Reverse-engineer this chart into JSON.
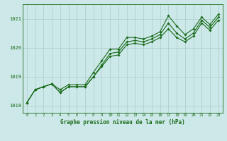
{
  "title": "",
  "xlabel": "Graphe pression niveau de la mer (hPa)",
  "ylabel": "",
  "bg_color": "#cce8e8",
  "grid_color": "#aacccc",
  "line_color": "#1a6b1a",
  "marker_size": 1.8,
  "xlim": [
    -0.5,
    23.5
  ],
  "ylim": [
    1017.75,
    1021.5
  ],
  "yticks": [
    1018,
    1019,
    1020,
    1021
  ],
  "xticks": [
    0,
    1,
    2,
    3,
    4,
    5,
    6,
    7,
    8,
    9,
    10,
    11,
    12,
    13,
    14,
    15,
    16,
    17,
    18,
    19,
    20,
    21,
    22,
    23
  ],
  "series1": [
    1018.1,
    1018.55,
    1018.65,
    1018.75,
    1018.55,
    1018.72,
    1018.72,
    1018.72,
    1019.15,
    1019.55,
    1019.95,
    1019.95,
    1020.35,
    1020.35,
    1020.3,
    1020.4,
    1020.55,
    1021.1,
    1020.75,
    1020.45,
    1020.65,
    1021.05,
    1020.8,
    1021.15
  ],
  "series2": [
    1018.1,
    1018.55,
    1018.65,
    1018.75,
    1018.45,
    1018.65,
    1018.65,
    1018.65,
    1019.0,
    1019.4,
    1019.8,
    1019.85,
    1020.2,
    1020.25,
    1020.2,
    1020.3,
    1020.45,
    1020.85,
    1020.5,
    1020.3,
    1020.5,
    1020.95,
    1020.7,
    1021.05
  ],
  "series3": [
    1018.1,
    1018.55,
    1018.65,
    1018.75,
    1018.45,
    1018.65,
    1018.65,
    1018.65,
    1019.0,
    1019.35,
    1019.7,
    1019.75,
    1020.1,
    1020.15,
    1020.1,
    1020.2,
    1020.35,
    1020.65,
    1020.35,
    1020.2,
    1020.4,
    1020.85,
    1020.6,
    1020.95
  ]
}
